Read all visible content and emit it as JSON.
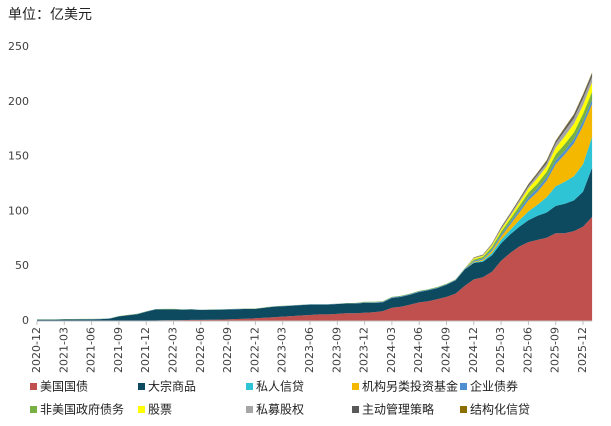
{
  "chart_data": {
    "type": "area",
    "stacked": true,
    "title": "单位：亿美元",
    "categories": [
      "2020-12",
      null,
      null,
      "2021-03",
      null,
      null,
      "2021-06",
      null,
      null,
      "2021-09",
      null,
      null,
      "2021-12",
      null,
      null,
      "2022-03",
      null,
      null,
      "2022-06",
      null,
      null,
      "2022-09",
      null,
      null,
      "2022-12",
      null,
      null,
      "2023-03",
      null,
      null,
      "2023-06",
      null,
      null,
      "2023-09",
      null,
      null,
      "2023-12",
      null,
      null,
      "2024-03",
      null,
      null,
      "2024-06",
      null,
      null,
      "2024-09",
      null,
      null,
      "2024-12",
      null,
      null,
      "2025-03",
      null,
      null,
      "2025-06",
      null,
      null,
      "2025-09",
      null,
      null,
      "2025-12",
      null
    ],
    "ylim": [
      0,
      250
    ],
    "yticks": [
      0,
      50,
      100,
      150,
      200,
      250
    ],
    "grid": false,
    "series": [
      {
        "name": "美国国债",
        "color": "#c0504d",
        "values": [
          0.2,
          0.2,
          0.2,
          0.2,
          0.2,
          0.2,
          0.2,
          0.2,
          0.2,
          0.2,
          0.2,
          0.2,
          0.5,
          0.5,
          0.6,
          0.6,
          0.8,
          1,
          1,
          1.2,
          1.3,
          1.5,
          1.8,
          2,
          2.5,
          3,
          3.5,
          4,
          4.5,
          5,
          5.5,
          6,
          6,
          6.5,
          7,
          7,
          7.5,
          8,
          9,
          12,
          13,
          15,
          17,
          18,
          20,
          22,
          25,
          32,
          38,
          40,
          45,
          55,
          62,
          68,
          72,
          74,
          76,
          80,
          80,
          82,
          86,
          95
        ]
      },
      {
        "name": "大宗商品",
        "color": "#0d4a5f",
        "values": [
          1,
          1,
          1,
          1.2,
          1.2,
          1.3,
          1.3,
          1.5,
          2,
          4,
          5,
          6,
          8,
          10,
          10,
          10,
          9.5,
          9.5,
          9,
          9,
          9,
          9,
          9,
          9,
          8.5,
          9,
          9.5,
          9.5,
          9.5,
          9.5,
          9.5,
          9,
          9,
          9,
          9,
          9,
          9,
          8.5,
          8,
          9,
          9,
          9,
          9.5,
          10,
          10,
          11,
          12,
          15,
          15,
          14,
          15,
          16,
          17,
          18,
          20,
          22,
          23,
          25,
          27,
          28,
          32,
          45
        ]
      },
      {
        "name": "私人信贷",
        "color": "#2ec4d6",
        "values": [
          0,
          0,
          0,
          0,
          0,
          0,
          0,
          0,
          0,
          0,
          0,
          0,
          0,
          0,
          0,
          0,
          0,
          0,
          0,
          0,
          0,
          0,
          0,
          0,
          0,
          0,
          0,
          0,
          0,
          0,
          0,
          0,
          0,
          0,
          0,
          0,
          0,
          0,
          0,
          0,
          0,
          0,
          0,
          0,
          0,
          0,
          0,
          0,
          0.5,
          1,
          2,
          3,
          4,
          6,
          8,
          10,
          14,
          18,
          20,
          22,
          25,
          28
        ]
      },
      {
        "name": "机构另类投资基金",
        "color": "#f5b800",
        "values": [
          0,
          0,
          0,
          0,
          0,
          0,
          0,
          0,
          0,
          0,
          0,
          0,
          0,
          0,
          0,
          0,
          0,
          0,
          0,
          0,
          0,
          0,
          0,
          0,
          0,
          0,
          0,
          0,
          0,
          0,
          0,
          0,
          0,
          0,
          0,
          0,
          0,
          0,
          0,
          0,
          0,
          0,
          0,
          0,
          0,
          0,
          0,
          0,
          0.5,
          1,
          2,
          3,
          5,
          7,
          10,
          12,
          15,
          20,
          25,
          30,
          35,
          30
        ]
      },
      {
        "name": "企业债券",
        "color": "#4f8fd1",
        "values": [
          0.2,
          0.2,
          0.2,
          0.2,
          0.2,
          0.2,
          0.2,
          0.2,
          0.2,
          0.2,
          0.2,
          0.2,
          0.2,
          0.2,
          0.2,
          0.2,
          0.2,
          0.2,
          0.2,
          0.2,
          0.2,
          0.2,
          0.2,
          0.2,
          0.2,
          0.2,
          0.2,
          0.2,
          0.2,
          0.2,
          0.2,
          0.2,
          0.2,
          0.2,
          0.2,
          0.2,
          0.5,
          0.5,
          0.5,
          0.5,
          0.5,
          0.5,
          0.5,
          0.5,
          0.5,
          0.5,
          0.5,
          0.5,
          1,
          1,
          1.5,
          2,
          2,
          2.5,
          3,
          3,
          3,
          3.5,
          3.5,
          4,
          4,
          4
        ]
      },
      {
        "name": "非美国政府债务",
        "color": "#77b144",
        "values": [
          0.2,
          0.2,
          0.2,
          0.2,
          0.2,
          0.2,
          0.2,
          0.2,
          0.2,
          0.2,
          0.2,
          0.2,
          0.2,
          0.2,
          0.2,
          0.2,
          0.2,
          0.2,
          0.2,
          0.2,
          0.2,
          0.2,
          0.2,
          0.2,
          0.2,
          0.2,
          0.2,
          0.2,
          0.2,
          0.2,
          0.2,
          0.2,
          0.2,
          0.2,
          0.2,
          0.2,
          0.5,
          0.5,
          0.5,
          0.5,
          0.5,
          0.5,
          0.5,
          0.5,
          0.5,
          0.5,
          0.5,
          0.5,
          1,
          1.5,
          2,
          2.5,
          3,
          3.5,
          4,
          4.5,
          5,
          5.5,
          6,
          6,
          7,
          7
        ]
      },
      {
        "name": "股票",
        "color": "#ffff00",
        "values": [
          0,
          0,
          0,
          0,
          0,
          0,
          0,
          0,
          0,
          0,
          0,
          0,
          0,
          0,
          0,
          0,
          0,
          0,
          0,
          0,
          0,
          0,
          0,
          0,
          0,
          0,
          0,
          0,
          0,
          0,
          0,
          0,
          0,
          0,
          0,
          0,
          0,
          0,
          0,
          0,
          0,
          0,
          0,
          0,
          0,
          0,
          0,
          0,
          1,
          1,
          1.5,
          2,
          2.5,
          3,
          4,
          5,
          5,
          6,
          7,
          8,
          8,
          9
        ]
      },
      {
        "name": "私募股权",
        "color": "#a6a6a6",
        "values": [
          0,
          0,
          0,
          0,
          0,
          0,
          0,
          0,
          0,
          0,
          0,
          0,
          0,
          0,
          0,
          0,
          0,
          0,
          0,
          0,
          0,
          0,
          0,
          0,
          0,
          0,
          0,
          0,
          0,
          0,
          0,
          0,
          0,
          0,
          0,
          0,
          0,
          0,
          0,
          0,
          0,
          0,
          0,
          0,
          0,
          0,
          0,
          0,
          0.5,
          0.5,
          1,
          1,
          1.5,
          2,
          2,
          3,
          3,
          4,
          5,
          5,
          6,
          5
        ]
      },
      {
        "name": "主动管理策略",
        "color": "#595959",
        "values": [
          0,
          0,
          0,
          0,
          0,
          0,
          0,
          0,
          0,
          0,
          0,
          0,
          0,
          0,
          0,
          0,
          0,
          0,
          0,
          0,
          0,
          0,
          0,
          0,
          0,
          0,
          0,
          0,
          0,
          0,
          0,
          0,
          0,
          0,
          0,
          0,
          0,
          0,
          0,
          0,
          0,
          0,
          0,
          0,
          0,
          0,
          0,
          0,
          0.3,
          0.5,
          0.5,
          1,
          1,
          1,
          1.5,
          1.5,
          2,
          2,
          2.5,
          3,
          3,
          3
        ]
      },
      {
        "name": "结构化信贷",
        "color": "#8c6d00",
        "values": [
          0,
          0,
          0,
          0,
          0,
          0,
          0,
          0,
          0,
          0,
          0,
          0,
          0,
          0,
          0,
          0,
          0,
          0,
          0,
          0,
          0,
          0,
          0,
          0,
          0,
          0,
          0,
          0,
          0,
          0,
          0,
          0,
          0,
          0,
          0,
          0,
          0,
          0,
          0,
          0,
          0,
          0,
          0,
          0,
          0,
          0,
          0,
          0,
          0.2,
          0.2,
          0.3,
          0.3,
          0.4,
          0.5,
          0.5,
          0.5,
          0.6,
          0.6,
          0.7,
          0.8,
          0.8,
          0.8
        ]
      }
    ]
  }
}
